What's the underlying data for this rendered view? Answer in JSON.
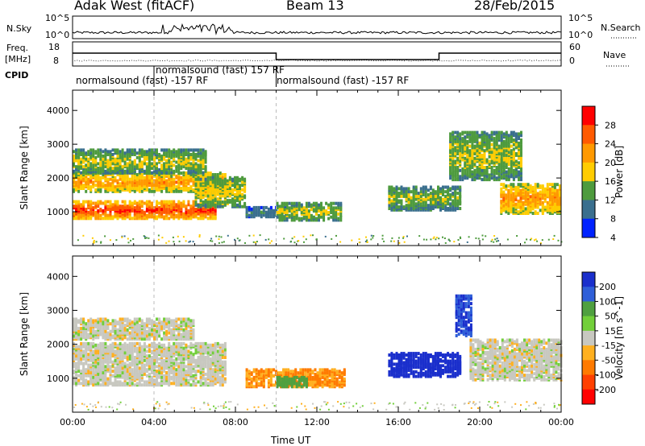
{
  "header": {
    "station": "Adak West (fitACF)",
    "beam": "Beam 13",
    "date": "28/Feb/2015"
  },
  "noise_panel": {
    "left_label": "N.Sky",
    "right_label": "N.Search",
    "left_ticks": [
      "10^5",
      "10^0"
    ],
    "right_ticks": [
      "10^5",
      "10^0"
    ]
  },
  "freq_panel": {
    "left_label": "Freq.",
    "left_unit": "[MHz]",
    "left_ticks": [
      "18",
      "8"
    ],
    "right_label": "Nave",
    "right_ticks": [
      "60",
      "0"
    ]
  },
  "cpid": {
    "label": "CPID",
    "segments": [
      {
        "text": "normalsound (fast) -157 RF",
        "start_hour": 0
      },
      {
        "text": "normalsound (fast) 157 RF",
        "start_hour": 4
      },
      {
        "text": "normalsound (fast) -157 RF",
        "start_hour": 10
      }
    ]
  },
  "chart_data": [
    {
      "type": "heatmap",
      "title": "",
      "xlabel": "Time UT",
      "ylabel": "Slant Range [km]",
      "x_ticks": [
        "00:00",
        "04:00",
        "08:00",
        "12:00",
        "16:00",
        "20:00",
        "00:00"
      ],
      "xlim_hours": [
        0,
        24
      ],
      "ylim_km": [
        0,
        4600
      ],
      "y_ticks": [
        1000,
        2000,
        3000,
        4000
      ],
      "colorbar": {
        "label": "Power [dB]",
        "ticks": [
          "28",
          "24",
          "20",
          "16",
          "12",
          "8",
          "4"
        ],
        "colors": [
          "#ff0000",
          "#ff5a00",
          "#ff9900",
          "#ffcc00",
          "#4e9b3e",
          "#3a6f8e",
          "#0022ff"
        ]
      },
      "echo_regions": [
        {
          "t0": 0.0,
          "t1": 7.0,
          "r0": 850,
          "r1": 1350,
          "level": 0.95
        },
        {
          "t0": 0.0,
          "t1": 7.5,
          "r0": 1650,
          "r1": 2200,
          "level": 0.7
        },
        {
          "t0": 0.0,
          "t1": 6.5,
          "r0": 2200,
          "r1": 2900,
          "level": 0.45
        },
        {
          "t0": 6.0,
          "t1": 8.5,
          "r0": 1200,
          "r1": 2100,
          "level": 0.5
        },
        {
          "t0": 8.5,
          "t1": 10.5,
          "r0": 900,
          "r1": 1200,
          "level": 0.2
        },
        {
          "t0": 10.0,
          "t1": 13.2,
          "r0": 800,
          "r1": 1300,
          "level": 0.45
        },
        {
          "t0": 15.5,
          "t1": 19.0,
          "r0": 1100,
          "r1": 1800,
          "level": 0.4
        },
        {
          "t0": 18.5,
          "t1": 22.0,
          "r0": 2000,
          "r1": 3400,
          "level": 0.45
        },
        {
          "t0": 21.0,
          "t1": 24.0,
          "r0": 1000,
          "r1": 1900,
          "level": 0.7
        }
      ]
    },
    {
      "type": "heatmap",
      "title": "",
      "xlabel": "Time UT",
      "ylabel": "Slant Range [km]",
      "x_ticks": [
        "00:00",
        "04:00",
        "08:00",
        "12:00",
        "16:00",
        "20:00",
        "00:00"
      ],
      "xlim_hours": [
        0,
        24
      ],
      "ylim_km": [
        0,
        4600
      ],
      "y_ticks": [
        1000,
        2000,
        3000,
        4000
      ],
      "colorbar": {
        "label": "Velocity [m s^-1]",
        "ticks": [
          "200",
          "100",
          "50",
          "15",
          "-15",
          "-50",
          "-100",
          "-200"
        ],
        "colors": [
          "#1a2fcc",
          "#2f5fd8",
          "#4fa040",
          "#72cf3a",
          "#c8c8c0",
          "#ffb020",
          "#ff7a00",
          "#ff4000",
          "#ff0000"
        ]
      },
      "echo_regions": [
        {
          "t0": 0.0,
          "t1": 7.5,
          "r0": 850,
          "r1": 2100,
          "value": 0
        },
        {
          "t0": 0.0,
          "t1": 6.0,
          "r0": 2200,
          "r1": 2800,
          "value": 0
        },
        {
          "t0": 8.5,
          "t1": 13.3,
          "r0": 800,
          "r1": 1300,
          "value": -50
        },
        {
          "t0": 10.0,
          "t1": 11.5,
          "r0": 800,
          "r1": 1100,
          "value": 50
        },
        {
          "t0": 15.5,
          "t1": 19.0,
          "r0": 1100,
          "r1": 1800,
          "value": 200
        },
        {
          "t0": 18.8,
          "t1": 19.6,
          "r0": 2300,
          "r1": 3500,
          "value": 150
        },
        {
          "t0": 19.5,
          "t1": 24.0,
          "r0": 1000,
          "r1": 2200,
          "value": 0
        }
      ]
    }
  ]
}
